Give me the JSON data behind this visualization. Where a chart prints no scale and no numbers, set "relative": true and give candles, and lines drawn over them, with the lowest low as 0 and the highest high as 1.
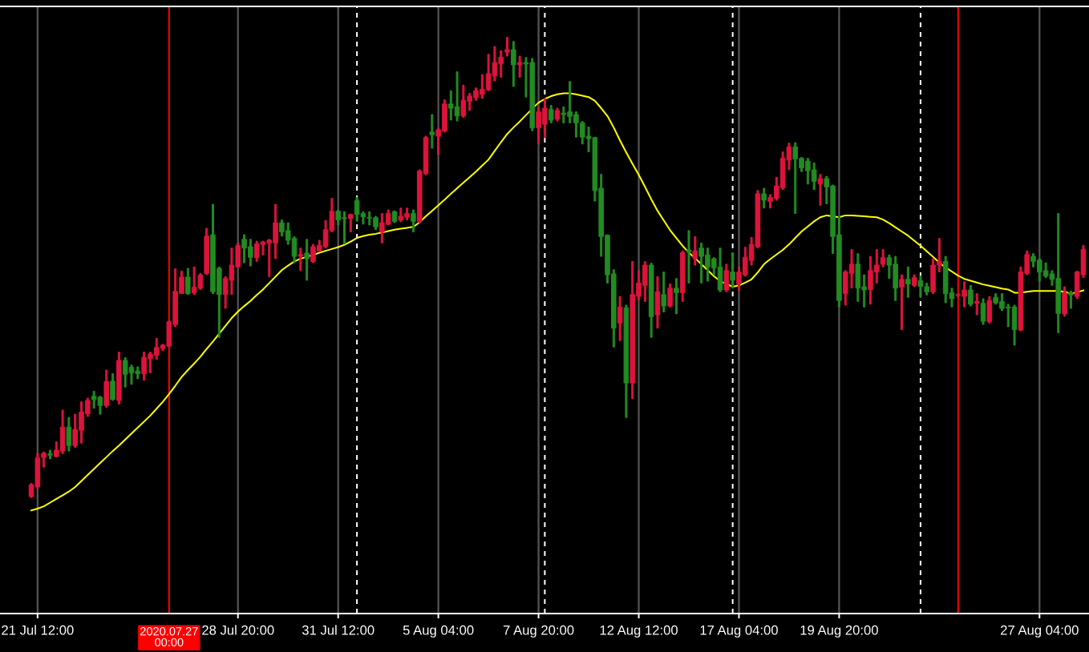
{
  "chart_data": {
    "type": "candlestick",
    "relative": true,
    "categories": [
      null,
      "21 Jul 12:00",
      null,
      null,
      null,
      null,
      null,
      null,
      null,
      null,
      null,
      null,
      null,
      null,
      null,
      null,
      null,
      null,
      null,
      null,
      null,
      null,
      null,
      null,
      null,
      null,
      null,
      null,
      null,
      null,
      null,
      null,
      null,
      "28 Jul 20:00",
      null,
      null,
      null,
      null,
      null,
      null,
      null,
      null,
      null,
      null,
      null,
      null,
      null,
      null,
      null,
      "31 Jul 12:00",
      null,
      null,
      null,
      null,
      null,
      null,
      null,
      null,
      null,
      null,
      null,
      null,
      null,
      null,
      null,
      "5 Aug 04:00",
      null,
      null,
      null,
      null,
      null,
      null,
      null,
      null,
      null,
      null,
      null,
      null,
      null,
      null,
      null,
      "7 Aug 20:00",
      null,
      null,
      null,
      null,
      null,
      null,
      null,
      null,
      null,
      null,
      null,
      null,
      null,
      null,
      null,
      "12 Aug 12:00",
      null,
      null,
      null,
      null,
      null,
      null,
      null,
      null,
      null,
      null,
      null,
      null,
      null,
      null,
      null,
      "17 Aug 04:00",
      null,
      null,
      null,
      null,
      null,
      null,
      null,
      null,
      null,
      null,
      null,
      null,
      null,
      null,
      null,
      "19 Aug 20:00",
      null,
      null,
      null,
      null,
      null,
      null,
      null,
      null,
      null,
      null,
      null,
      null,
      null,
      null,
      null,
      null,
      null,
      null,
      null,
      null,
      null,
      null,
      null,
      null,
      null,
      null,
      null,
      null,
      null,
      null,
      null,
      "27 Aug 04:00",
      null,
      null,
      null,
      null,
      null,
      null,
      null
    ],
    "ohlc": [
      [
        0.002,
        0.031,
        0.0,
        0.028
      ],
      [
        0.023,
        0.097,
        0.02,
        0.086
      ],
      [
        0.087,
        0.099,
        0.066,
        0.096
      ],
      [
        0.095,
        0.103,
        0.084,
        0.092
      ],
      [
        0.089,
        0.121,
        0.088,
        0.103
      ],
      [
        0.101,
        0.19,
        0.095,
        0.153
      ],
      [
        0.153,
        0.174,
        0.101,
        0.113
      ],
      [
        0.113,
        0.181,
        0.109,
        0.148
      ],
      [
        0.146,
        0.208,
        0.118,
        0.186
      ],
      [
        0.182,
        0.216,
        0.176,
        0.211
      ],
      [
        0.22,
        0.231,
        0.194,
        0.213
      ],
      [
        0.218,
        0.22,
        0.181,
        0.2
      ],
      [
        0.2,
        0.277,
        0.196,
        0.252
      ],
      [
        0.253,
        0.269,
        0.211,
        0.213
      ],
      [
        0.211,
        0.316,
        0.203,
        0.298
      ],
      [
        0.298,
        0.304,
        0.24,
        0.268
      ],
      [
        0.283,
        0.288,
        0.246,
        0.271
      ],
      [
        0.275,
        0.284,
        0.258,
        0.269
      ],
      [
        0.269,
        0.316,
        0.255,
        0.305
      ],
      [
        0.302,
        0.316,
        0.271,
        0.312
      ],
      [
        0.309,
        0.346,
        0.3,
        0.326
      ],
      [
        0.324,
        0.333,
        0.319,
        0.331
      ],
      [
        0.329,
        0.384,
        0.327,
        0.382
      ],
      [
        0.376,
        0.497,
        0.371,
        0.448
      ],
      [
        0.443,
        0.492,
        0.443,
        0.479
      ],
      [
        0.479,
        0.498,
        0.441,
        0.443
      ],
      [
        0.445,
        0.501,
        0.441,
        0.457
      ],
      [
        0.455,
        0.487,
        0.452,
        0.483
      ],
      [
        0.487,
        0.585,
        0.484,
        0.568
      ],
      [
        0.571,
        0.637,
        0.443,
        0.447
      ],
      [
        0.498,
        0.501,
        0.348,
        0.441
      ],
      [
        0.441,
        0.48,
        0.411,
        0.476
      ],
      [
        0.472,
        0.542,
        0.441,
        0.505
      ],
      [
        0.501,
        0.553,
        0.5,
        0.548
      ],
      [
        0.561,
        0.571,
        0.51,
        0.542
      ],
      [
        0.545,
        0.561,
        0.503,
        0.522
      ],
      [
        0.521,
        0.557,
        0.513,
        0.551
      ],
      [
        0.55,
        0.557,
        0.527,
        0.555
      ],
      [
        0.553,
        0.561,
        0.48,
        0.559
      ],
      [
        0.553,
        0.637,
        0.519,
        0.597
      ],
      [
        0.597,
        0.603,
        0.568,
        0.577
      ],
      [
        0.58,
        0.597,
        0.55,
        0.559
      ],
      [
        0.563,
        0.567,
        0.51,
        0.524
      ],
      [
        0.524,
        0.542,
        0.493,
        0.528
      ],
      [
        0.531,
        0.561,
        0.472,
        0.519
      ],
      [
        0.513,
        0.55,
        0.51,
        0.545
      ],
      [
        0.536,
        0.559,
        0.534,
        0.548
      ],
      [
        0.545,
        0.602,
        0.542,
        0.582
      ],
      [
        0.58,
        0.65,
        0.577,
        0.622
      ],
      [
        0.622,
        0.625,
        0.592,
        0.603
      ],
      [
        0.608,
        0.621,
        0.551,
        0.606
      ],
      [
        0.606,
        0.616,
        0.577,
        0.615
      ],
      [
        0.645,
        0.652,
        0.6,
        0.615
      ],
      [
        0.617,
        0.621,
        0.594,
        0.61
      ],
      [
        0.609,
        0.621,
        0.592,
        0.607
      ],
      [
        0.608,
        0.611,
        0.582,
        0.588
      ],
      [
        0.577,
        0.617,
        0.553,
        0.597
      ],
      [
        0.594,
        0.625,
        0.592,
        0.617
      ],
      [
        0.621,
        0.623,
        0.597,
        0.6
      ],
      [
        0.603,
        0.629,
        0.599,
        0.611
      ],
      [
        0.609,
        0.629,
        0.603,
        0.617
      ],
      [
        0.617,
        0.625,
        0.577,
        0.6
      ],
      [
        0.6,
        0.712,
        0.597,
        0.709
      ],
      [
        0.704,
        0.785,
        0.701,
        0.782
      ],
      [
        0.794,
        0.832,
        0.759,
        0.788
      ],
      [
        0.785,
        0.803,
        0.745,
        0.799
      ],
      [
        0.796,
        0.864,
        0.794,
        0.855
      ],
      [
        0.855,
        0.884,
        0.82,
        0.846
      ],
      [
        0.849,
        0.925,
        0.818,
        0.829
      ],
      [
        0.829,
        0.896,
        0.826,
        0.863
      ],
      [
        0.861,
        0.878,
        0.841,
        0.872
      ],
      [
        0.869,
        0.89,
        0.863,
        0.884
      ],
      [
        0.876,
        0.919,
        0.867,
        0.887
      ],
      [
        0.886,
        0.963,
        0.884,
        0.921
      ],
      [
        0.916,
        0.98,
        0.905,
        0.945
      ],
      [
        0.942,
        0.971,
        0.913,
        0.957
      ],
      [
        0.968,
        1.0,
        0.959,
        0.973
      ],
      [
        0.973,
        0.991,
        0.893,
        0.94
      ],
      [
        0.94,
        0.959,
        0.913,
        0.945
      ],
      [
        0.945,
        0.956,
        0.87,
        0.942
      ],
      [
        0.945,
        0.954,
        0.797,
        0.803
      ],
      [
        0.803,
        0.849,
        0.768,
        0.838
      ],
      [
        0.811,
        0.867,
        0.782,
        0.846
      ],
      [
        0.843,
        0.852,
        0.814,
        0.82
      ],
      [
        0.822,
        0.846,
        0.818,
        0.841
      ],
      [
        0.835,
        0.849,
        0.814,
        0.832
      ],
      [
        0.838,
        0.904,
        0.814,
        0.828
      ],
      [
        0.832,
        0.838,
        0.783,
        0.814
      ],
      [
        0.814,
        0.817,
        0.768,
        0.783
      ],
      [
        0.785,
        0.805,
        0.751,
        0.78
      ],
      [
        0.782,
        0.783,
        0.644,
        0.667
      ],
      [
        0.672,
        0.702,
        0.524,
        0.567
      ],
      [
        0.57,
        0.571,
        0.466,
        0.484
      ],
      [
        0.486,
        0.495,
        0.327,
        0.368
      ],
      [
        0.379,
        0.437,
        0.341,
        0.414
      ],
      [
        0.412,
        0.418,
        0.174,
        0.249
      ],
      [
        0.249,
        0.513,
        0.215,
        0.441
      ],
      [
        0.437,
        0.493,
        0.429,
        0.466
      ],
      [
        0.461,
        0.513,
        0.426,
        0.505
      ],
      [
        0.505,
        0.509,
        0.348,
        0.393
      ],
      [
        0.397,
        0.48,
        0.368,
        0.447
      ],
      [
        0.441,
        0.49,
        0.403,
        0.416
      ],
      [
        0.416,
        0.464,
        0.414,
        0.455
      ],
      [
        0.455,
        0.476,
        0.399,
        0.445
      ],
      [
        0.445,
        0.536,
        0.426,
        0.532
      ],
      [
        0.538,
        0.58,
        0.466,
        0.534
      ],
      [
        0.519,
        0.567,
        0.505,
        0.536
      ],
      [
        0.542,
        0.553,
        0.466,
        0.524
      ],
      [
        0.527,
        0.542,
        0.47,
        0.501
      ],
      [
        0.519,
        0.521,
        0.484,
        0.499
      ],
      [
        0.501,
        0.542,
        0.447,
        0.451
      ],
      [
        0.451,
        0.507,
        0.447,
        0.493
      ],
      [
        0.49,
        0.532,
        0.455,
        0.472
      ],
      [
        0.464,
        0.501,
        0.449,
        0.49
      ],
      [
        0.484,
        0.544,
        0.481,
        0.522
      ],
      [
        0.515,
        0.565,
        0.505,
        0.55
      ],
      [
        0.545,
        0.667,
        0.542,
        0.66
      ],
      [
        0.66,
        0.672,
        0.629,
        0.646
      ],
      [
        0.643,
        0.658,
        0.629,
        0.652
      ],
      [
        0.65,
        0.696,
        0.646,
        0.677
      ],
      [
        0.673,
        0.751,
        0.669,
        0.737
      ],
      [
        0.733,
        0.77,
        0.712,
        0.762
      ],
      [
        0.762,
        0.771,
        0.617,
        0.736
      ],
      [
        0.737,
        0.739,
        0.708,
        0.716
      ],
      [
        0.731,
        0.737,
        0.681,
        0.71
      ],
      [
        0.712,
        0.727,
        0.669,
        0.687
      ],
      [
        0.681,
        0.702,
        0.635,
        0.693
      ],
      [
        0.693,
        0.698,
        0.638,
        0.675
      ],
      [
        0.677,
        0.679,
        0.53,
        0.567
      ],
      [
        0.571,
        0.611,
        0.414,
        0.428
      ],
      [
        0.443,
        0.493,
        0.418,
        0.49
      ],
      [
        0.487,
        0.539,
        0.455,
        0.507
      ],
      [
        0.507,
        0.53,
        0.426,
        0.455
      ],
      [
        0.458,
        0.484,
        0.414,
        0.451
      ],
      [
        0.452,
        0.524,
        0.42,
        0.493
      ],
      [
        0.49,
        0.539,
        0.466,
        0.505
      ],
      [
        0.507,
        0.539,
        0.501,
        0.521
      ],
      [
        0.521,
        0.527,
        0.476,
        0.505
      ],
      [
        0.507,
        0.524,
        0.428,
        0.455
      ],
      [
        0.457,
        0.484,
        0.365,
        0.474
      ],
      [
        0.474,
        0.501,
        0.435,
        0.464
      ],
      [
        0.461,
        0.484,
        0.458,
        0.478
      ],
      [
        0.471,
        0.481,
        0.435,
        0.459
      ],
      [
        0.458,
        0.466,
        0.44,
        0.447
      ],
      [
        0.447,
        0.519,
        0.443,
        0.505
      ],
      [
        0.505,
        0.563,
        0.49,
        0.513
      ],
      [
        0.513,
        0.524,
        0.423,
        0.443
      ],
      [
        0.445,
        0.455,
        0.414,
        0.432
      ],
      [
        0.439,
        0.443,
        0.436,
        0.441
      ],
      [
        0.437,
        0.469,
        0.414,
        0.451
      ],
      [
        0.451,
        0.461,
        0.416,
        0.42
      ],
      [
        0.422,
        0.443,
        0.397,
        0.426
      ],
      [
        0.422,
        0.432,
        0.376,
        0.383
      ],
      [
        0.382,
        0.437,
        0.379,
        0.428
      ],
      [
        0.435,
        0.443,
        0.42,
        0.423
      ],
      [
        0.426,
        0.443,
        0.406,
        0.411
      ],
      [
        0.414,
        0.42,
        0.371,
        0.412
      ],
      [
        0.414,
        0.418,
        0.331,
        0.365
      ],
      [
        0.364,
        0.501,
        0.362,
        0.49
      ],
      [
        0.487,
        0.536,
        0.484,
        0.528
      ],
      [
        0.524,
        0.53,
        0.501,
        0.513
      ],
      [
        0.516,
        0.519,
        0.47,
        0.49
      ],
      [
        0.493,
        0.51,
        0.478,
        0.481
      ],
      [
        0.486,
        0.493,
        0.461,
        0.474
      ],
      [
        0.476,
        0.617,
        0.358,
        0.4
      ],
      [
        0.399,
        0.458,
        0.394,
        0.445
      ],
      [
        0.445,
        0.449,
        0.411,
        0.44
      ],
      [
        0.437,
        0.492,
        0.432,
        0.49
      ],
      [
        0.484,
        0.548,
        0.478,
        0.539
      ]
    ],
    "colors": [
      "#dc143c",
      "#dc143c",
      "#dc143c",
      "#228b22",
      "#dc143c",
      "#dc143c",
      "#228b22",
      "#dc143c",
      "#dc143c",
      "#dc143c",
      "#228b22",
      "#228b22",
      "#dc143c",
      "#228b22",
      "#dc143c",
      "#228b22",
      "#228b22",
      "#228b22",
      "#dc143c",
      "#dc143c",
      "#dc143c",
      "#dc143c",
      "#dc143c",
      "#dc143c",
      "#dc143c",
      "#228b22",
      "#dc143c",
      "#dc143c",
      "#dc143c",
      "#228b22",
      "#228b22",
      "#dc143c",
      "#dc143c",
      "#dc143c",
      "#228b22",
      "#228b22",
      "#dc143c",
      "#dc143c",
      "#dc143c",
      "#dc143c",
      "#228b22",
      "#228b22",
      "#228b22",
      "#dc143c",
      "#228b22",
      "#dc143c",
      "#dc143c",
      "#dc143c",
      "#dc143c",
      "#228b22",
      "#228b22",
      "#dc143c",
      "#228b22",
      "#228b22",
      "#228b22",
      "#228b22",
      "#dc143c",
      "#dc143c",
      "#228b22",
      "#dc143c",
      "#dc143c",
      "#228b22",
      "#dc143c",
      "#dc143c",
      "#228b22",
      "#dc143c",
      "#dc143c",
      "#228b22",
      "#228b22",
      "#dc143c",
      "#dc143c",
      "#dc143c",
      "#dc143c",
      "#dc143c",
      "#dc143c",
      "#dc143c",
      "#dc143c",
      "#228b22",
      "#dc143c",
      "#228b22",
      "#228b22",
      "#dc143c",
      "#dc143c",
      "#228b22",
      "#dc143c",
      "#228b22",
      "#228b22",
      "#228b22",
      "#228b22",
      "#228b22",
      "#228b22",
      "#228b22",
      "#228b22",
      "#228b22",
      "#dc143c",
      "#228b22",
      "#dc143c",
      "#dc143c",
      "#dc143c",
      "#228b22",
      "#dc143c",
      "#228b22",
      "#dc143c",
      "#228b22",
      "#dc143c",
      "#228b22",
      "#dc143c",
      "#228b22",
      "#228b22",
      "#228b22",
      "#228b22",
      "#dc143c",
      "#228b22",
      "#dc143c",
      "#dc143c",
      "#dc143c",
      "#dc143c",
      "#228b22",
      "#dc143c",
      "#dc143c",
      "#dc143c",
      "#dc143c",
      "#228b22",
      "#228b22",
      "#228b22",
      "#228b22",
      "#dc143c",
      "#228b22",
      "#228b22",
      "#228b22",
      "#dc143c",
      "#dc143c",
      "#228b22",
      "#228b22",
      "#dc143c",
      "#dc143c",
      "#dc143c",
      "#228b22",
      "#228b22",
      "#dc143c",
      "#228b22",
      "#dc143c",
      "#228b22",
      "#228b22",
      "#dc143c",
      "#dc143c",
      "#228b22",
      "#228b22",
      "#dc143c",
      "#dc143c",
      "#228b22",
      "#dc143c",
      "#228b22",
      "#dc143c",
      "#228b22",
      "#228b22",
      "#228b22",
      "#228b22",
      "#dc143c",
      "#dc143c",
      "#228b22",
      "#228b22",
      "#228b22",
      "#228b22",
      "#228b22",
      "#dc143c",
      "#228b22",
      "#dc143c",
      "#dc143c"
    ],
    "series": [
      {
        "type": "line",
        "color": "#ffff00",
        "values": [
          -0.028,
          -0.024,
          -0.019,
          -0.011,
          -0.003,
          0.005,
          0.013,
          0.023,
          0.036,
          0.049,
          0.062,
          0.075,
          0.088,
          0.101,
          0.113,
          0.126,
          0.139,
          0.152,
          0.165,
          0.178,
          0.193,
          0.208,
          0.225,
          0.243,
          0.262,
          0.277,
          0.291,
          0.306,
          0.323,
          0.339,
          0.356,
          0.373,
          0.39,
          0.404,
          0.416,
          0.427,
          0.44,
          0.452,
          0.466,
          0.48,
          0.494,
          0.504,
          0.513,
          0.519,
          0.523,
          0.527,
          0.532,
          0.536,
          0.54,
          0.544,
          0.549,
          0.556,
          0.564,
          0.568,
          0.571,
          0.573,
          0.576,
          0.579,
          0.582,
          0.584,
          0.586,
          0.588,
          0.598,
          0.611,
          0.623,
          0.635,
          0.647,
          0.66,
          0.672,
          0.684,
          0.696,
          0.708,
          0.721,
          0.734,
          0.753,
          0.772,
          0.79,
          0.804,
          0.817,
          0.831,
          0.845,
          0.858,
          0.866,
          0.872,
          0.876,
          0.878,
          0.878,
          0.876,
          0.873,
          0.87,
          0.862,
          0.846,
          0.829,
          0.804,
          0.776,
          0.75,
          0.725,
          0.701,
          0.675,
          0.648,
          0.623,
          0.602,
          0.581,
          0.564,
          0.547,
          0.532,
          0.52,
          0.507,
          0.494,
          0.481,
          0.47,
          0.464,
          0.458,
          0.461,
          0.467,
          0.474,
          0.489,
          0.507,
          0.518,
          0.528,
          0.538,
          0.55,
          0.564,
          0.578,
          0.589,
          0.6,
          0.609,
          0.613,
          0.611,
          0.609,
          0.613,
          0.613,
          0.612,
          0.611,
          0.61,
          0.609,
          0.604,
          0.596,
          0.587,
          0.578,
          0.569,
          0.558,
          0.547,
          0.535,
          0.523,
          0.51,
          0.5,
          0.491,
          0.482,
          0.475,
          0.471,
          0.467,
          0.463,
          0.46,
          0.457,
          0.454,
          0.452,
          0.445,
          0.445,
          0.447,
          0.449,
          0.449,
          0.449,
          0.449,
          0.449,
          0.447,
          0.443,
          0.446,
          0.45
        ]
      }
    ],
    "annotations": [
      "2020.07.27 00:00"
    ]
  }
}
